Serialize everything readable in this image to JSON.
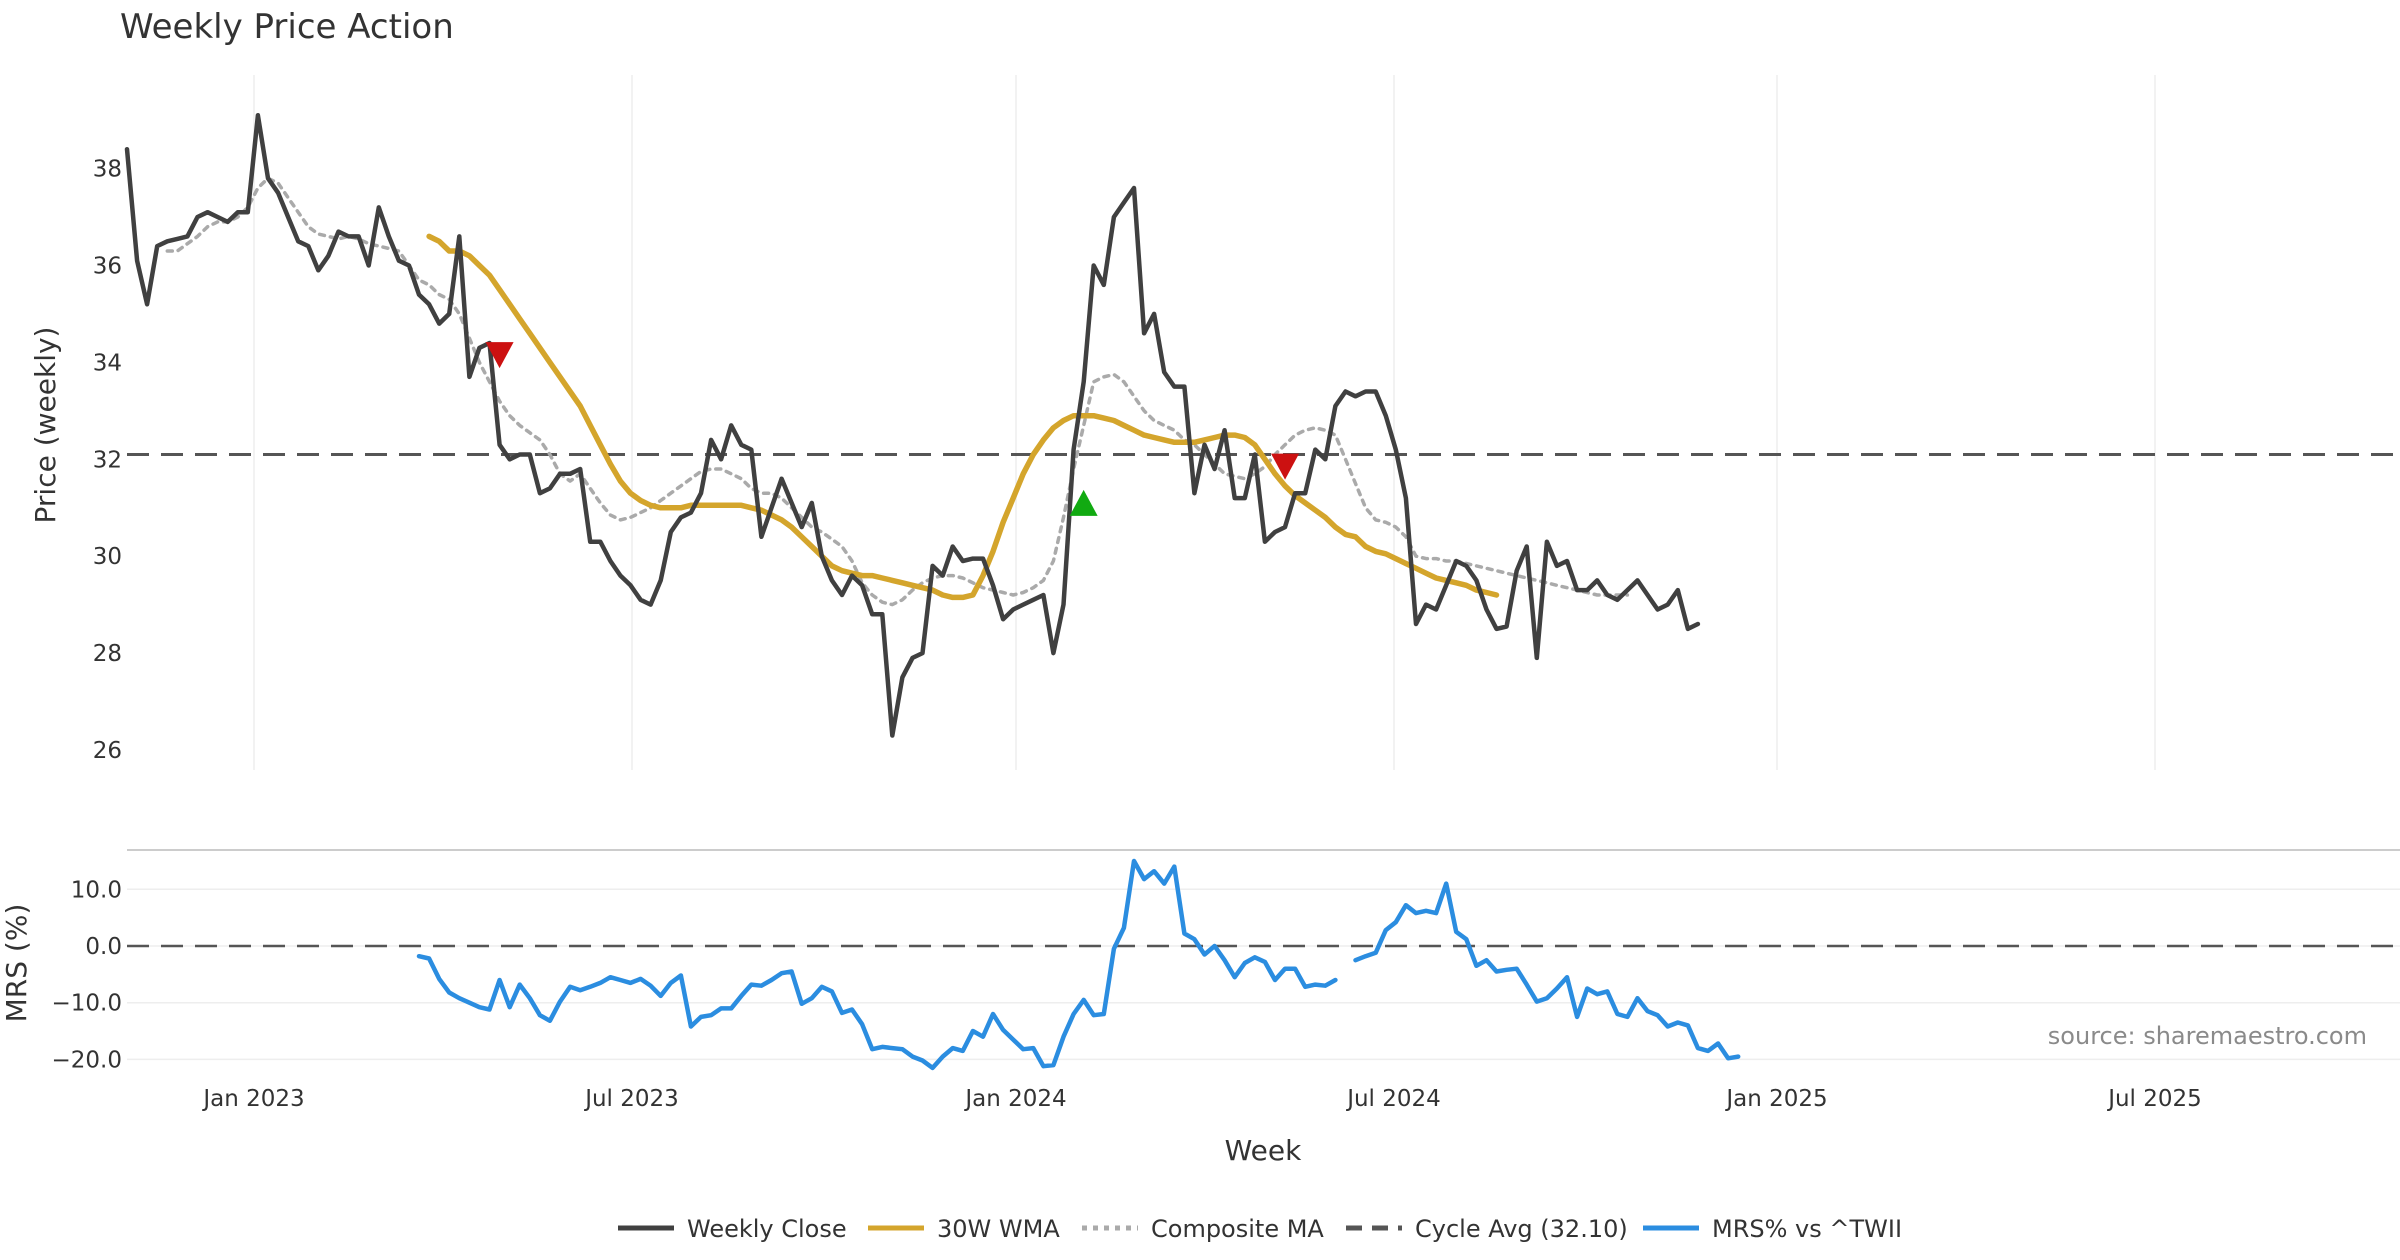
{
  "chart_data": {
    "type": "line",
    "title": "Weekly Price Action",
    "xlabel": "Week",
    "x_ticks": [
      "Jan 2023",
      "Jul 2023",
      "Jan 2024",
      "Jul 2024",
      "Jan 2025",
      "Jul 2025"
    ],
    "price_panel": {
      "ylabel": "Price (weekly)",
      "ylim": [
        25.6,
        39.4
      ],
      "y_ticks": [
        26,
        28,
        30,
        32,
        34,
        36,
        38
      ],
      "series": [
        {
          "name": "Weekly Close",
          "color": "#404040",
          "style": "solid",
          "values": [
            38.4,
            36.1,
            35.2,
            36.4,
            36.5,
            36.55,
            36.6,
            37.0,
            37.1,
            37.0,
            36.9,
            37.1,
            37.1,
            39.1,
            37.8,
            37.5,
            37.0,
            36.5,
            36.4,
            35.9,
            36.2,
            36.7,
            36.6,
            36.6,
            36.0,
            37.2,
            36.6,
            36.1,
            36.0,
            35.4,
            35.2,
            34.8,
            35.0,
            36.6,
            33.7,
            34.3,
            34.4,
            32.3,
            32.0,
            32.1,
            32.1,
            31.3,
            31.4,
            31.7,
            31.7,
            31.8,
            30.3,
            30.3,
            29.9,
            29.6,
            29.4,
            29.1,
            29.0,
            29.5,
            30.5,
            30.8,
            30.9,
            31.3,
            32.4,
            32.0,
            32.7,
            32.3,
            32.2,
            30.4,
            31.0,
            31.6,
            31.1,
            30.6,
            31.1,
            30.0,
            29.5,
            29.2,
            29.6,
            29.4,
            28.8,
            28.8,
            26.3,
            27.5,
            27.9,
            28.0,
            29.8,
            29.6,
            30.2,
            29.9,
            29.95,
            29.95,
            29.4,
            28.7,
            28.9,
            29.0,
            29.1,
            29.2,
            28.0,
            29.0,
            32.2,
            33.6,
            36.0,
            35.6,
            37.0,
            37.3,
            37.6,
            34.6,
            35.0,
            33.8,
            33.5,
            33.5,
            31.3,
            32.3,
            31.8,
            32.6,
            31.2,
            31.2,
            32.1,
            30.3,
            30.5,
            30.6,
            31.3,
            31.3,
            32.2,
            32.0,
            33.1,
            33.4,
            33.3,
            33.4,
            33.4,
            32.9,
            32.2,
            31.2,
            28.6,
            29.0,
            28.9,
            29.4,
            29.9,
            29.8,
            29.5,
            28.9,
            28.5,
            28.55,
            29.7,
            30.2,
            27.9,
            30.3,
            29.8,
            29.9,
            29.3,
            29.3,
            29.5,
            29.2,
            29.1,
            29.3,
            29.5,
            29.2,
            28.9,
            29.0,
            29.3,
            28.5,
            28.6
          ]
        },
        {
          "name": "30W WMA",
          "color": "#d4a52c",
          "style": "solid",
          "start_index": 30,
          "values": [
            36.6,
            36.5,
            36.3,
            36.3,
            36.2,
            36.0,
            35.8,
            35.5,
            35.2,
            34.9,
            34.6,
            34.3,
            34.0,
            33.7,
            33.4,
            33.1,
            32.7,
            32.3,
            31.9,
            31.55,
            31.3,
            31.15,
            31.05,
            31.0,
            31.0,
            31.0,
            31.05,
            31.05,
            31.05,
            31.05,
            31.05,
            31.05,
            31.0,
            30.95,
            30.85,
            30.75,
            30.6,
            30.4,
            30.2,
            30.0,
            29.8,
            29.7,
            29.65,
            29.6,
            29.6,
            29.55,
            29.5,
            29.45,
            29.4,
            29.35,
            29.3,
            29.2,
            29.15,
            29.15,
            29.2,
            29.6,
            30.1,
            30.7,
            31.2,
            31.7,
            32.1,
            32.4,
            32.65,
            32.8,
            32.9,
            32.9,
            32.9,
            32.85,
            32.8,
            32.7,
            32.6,
            32.5,
            32.45,
            32.4,
            32.35,
            32.35,
            32.35,
            32.4,
            32.45,
            32.5,
            32.5,
            32.45,
            32.3,
            32.0,
            31.7,
            31.45,
            31.25,
            31.1,
            30.95,
            30.8,
            30.6,
            30.45,
            30.4,
            30.2,
            30.1,
            30.05,
            29.95,
            29.85,
            29.75,
            29.65,
            29.55,
            29.5,
            29.45,
            29.4,
            29.3,
            29.25,
            29.2
          ]
        },
        {
          "name": "Composite MA",
          "color": "#aaaaaa",
          "style": "dotted",
          "start_index": 4,
          "values": [
            36.3,
            36.3,
            36.45,
            36.6,
            36.8,
            36.9,
            36.9,
            37.0,
            37.2,
            37.6,
            37.8,
            37.7,
            37.4,
            37.1,
            36.8,
            36.65,
            36.6,
            36.55,
            36.6,
            36.55,
            36.45,
            36.4,
            36.35,
            36.3,
            36.0,
            35.7,
            35.6,
            35.4,
            35.3,
            35.0,
            34.5,
            34.0,
            33.6,
            33.2,
            32.9,
            32.7,
            32.55,
            32.4,
            32.1,
            31.7,
            31.55,
            31.7,
            31.4,
            31.1,
            30.85,
            30.75,
            30.8,
            30.9,
            31.0,
            31.15,
            31.3,
            31.45,
            31.6,
            31.75,
            31.8,
            31.8,
            31.7,
            31.6,
            31.4,
            31.3,
            31.3,
            31.2,
            31.0,
            30.8,
            30.6,
            30.5,
            30.35,
            30.2,
            29.9,
            29.45,
            29.2,
            29.05,
            29.0,
            29.1,
            29.3,
            29.45,
            29.55,
            29.6,
            29.6,
            29.55,
            29.45,
            29.35,
            29.3,
            29.25,
            29.2,
            29.25,
            29.35,
            29.5,
            29.9,
            30.8,
            31.8,
            32.7,
            33.6,
            33.7,
            33.75,
            33.6,
            33.3,
            33.0,
            32.8,
            32.7,
            32.6,
            32.4,
            32.3,
            32.1,
            31.9,
            31.7,
            31.65,
            31.6,
            31.7,
            31.85,
            32.1,
            32.3,
            32.5,
            32.6,
            32.65,
            32.6,
            32.5,
            32.0,
            31.5,
            31.0,
            30.75,
            30.7,
            30.6,
            30.4,
            30.0,
            29.95,
            29.95,
            29.9,
            29.9,
            29.85,
            29.8,
            29.75,
            29.7,
            29.65,
            29.6,
            29.55,
            29.5,
            29.45,
            29.4,
            29.35,
            29.3,
            29.25,
            29.2,
            29.2,
            29.2,
            29.2
          ]
        }
      ],
      "reference_line": {
        "name": "Cycle Avg (32.10)",
        "value": 32.1,
        "color": "#555555",
        "style": "dashed"
      },
      "markers": [
        {
          "index": 37,
          "value": 34.15,
          "kind": "sell",
          "shape": "triangle-down",
          "color": "#cc1111"
        },
        {
          "index": 95,
          "value": 31.1,
          "kind": "buy",
          "shape": "triangle-up",
          "color": "#11aa11"
        },
        {
          "index": 115,
          "value": 31.85,
          "kind": "sell",
          "shape": "triangle-down",
          "color": "#cc1111"
        }
      ]
    },
    "mrs_panel": {
      "ylabel": "MRS (%)",
      "ylim": [
        -22.5,
        17.5
      ],
      "y_ticks": [
        -20.0,
        -10.0,
        0.0,
        10.0
      ],
      "y_tick_labels": [
        "−20.0",
        "−10.0",
        "0.0",
        "10.0"
      ],
      "zero_line": {
        "value": 0,
        "style": "dashed"
      },
      "series": [
        {
          "name": "MRS% vs ^TWII",
          "color": "#2b8de0",
          "style": "solid",
          "segments": [
            {
              "start_index": 29,
              "values": [
                -1.8,
                -2.2,
                -5.8,
                -8.2,
                -9.2,
                -10.0,
                -10.8,
                -11.2,
                -6.0,
                -10.8,
                -6.8,
                -9.2,
                -12.2,
                -13.2,
                -9.8,
                -7.2,
                -7.8,
                -7.2,
                -6.5,
                -5.5,
                -6.0,
                -6.5,
                -5.8,
                -7.0,
                -8.8,
                -6.5,
                -5.2,
                -14.2,
                -12.5,
                -12.2,
                -11.0,
                -11.0,
                -8.8,
                -6.8,
                -7.0,
                -6.0,
                -4.8,
                -4.5,
                -10.2,
                -9.2,
                -7.2,
                -8.0,
                -11.8,
                -11.2,
                -13.8,
                -18.2,
                -17.8,
                -18.0,
                -18.2,
                -19.5,
                -20.2,
                -21.5,
                -19.5,
                -18.0,
                -18.5,
                -15.0,
                -16.0,
                -12.0,
                -14.8,
                -16.5,
                -18.2,
                -18.0,
                -21.2,
                -21.0,
                -16.0,
                -12.0,
                -9.5,
                -12.2,
                -12.0,
                -0.5,
                3.2,
                15.0,
                11.8,
                13.2,
                11.0,
                14.0,
                2.2,
                1.2,
                -1.5,
                0.0,
                -2.5,
                -5.5,
                -3.0,
                -2.0,
                -2.8,
                -6.0,
                -4.0,
                -4.0,
                -7.2,
                -6.8,
                -7.0,
                -6.0
              ]
            },
            {
              "start_index": 122,
              "values": [
                -2.5,
                -1.8,
                -1.2,
                2.8,
                4.2,
                7.2,
                5.8,
                6.2,
                5.8,
                11.0,
                2.5,
                1.2,
                -3.5,
                -2.5,
                -4.5,
                -4.2,
                -4.0,
                -6.8,
                -9.8,
                -9.2,
                -7.5,
                -5.5,
                -12.5,
                -7.5,
                -8.5,
                -8.0,
                -12.0,
                -12.5,
                -9.2,
                -11.5,
                -12.2,
                -14.2,
                -13.5,
                -14.0,
                -18.0,
                -18.5,
                -17.2,
                -19.8,
                -19.5
              ]
            }
          ]
        }
      ]
    },
    "legend": {
      "placement": "bottom-center",
      "entries": [
        {
          "label": "Weekly Close",
          "color": "#404040",
          "style": "solid"
        },
        {
          "label": "30W WMA",
          "color": "#d4a52c",
          "style": "solid"
        },
        {
          "label": "Composite MA",
          "color": "#aaaaaa",
          "style": "dotted"
        },
        {
          "label": "Cycle Avg (32.10)",
          "color": "#555555",
          "style": "dashed"
        },
        {
          "label": "MRS% vs ^TWII",
          "color": "#2b8de0",
          "style": "solid"
        }
      ]
    },
    "annotation": "source: sharemaestro.com"
  }
}
